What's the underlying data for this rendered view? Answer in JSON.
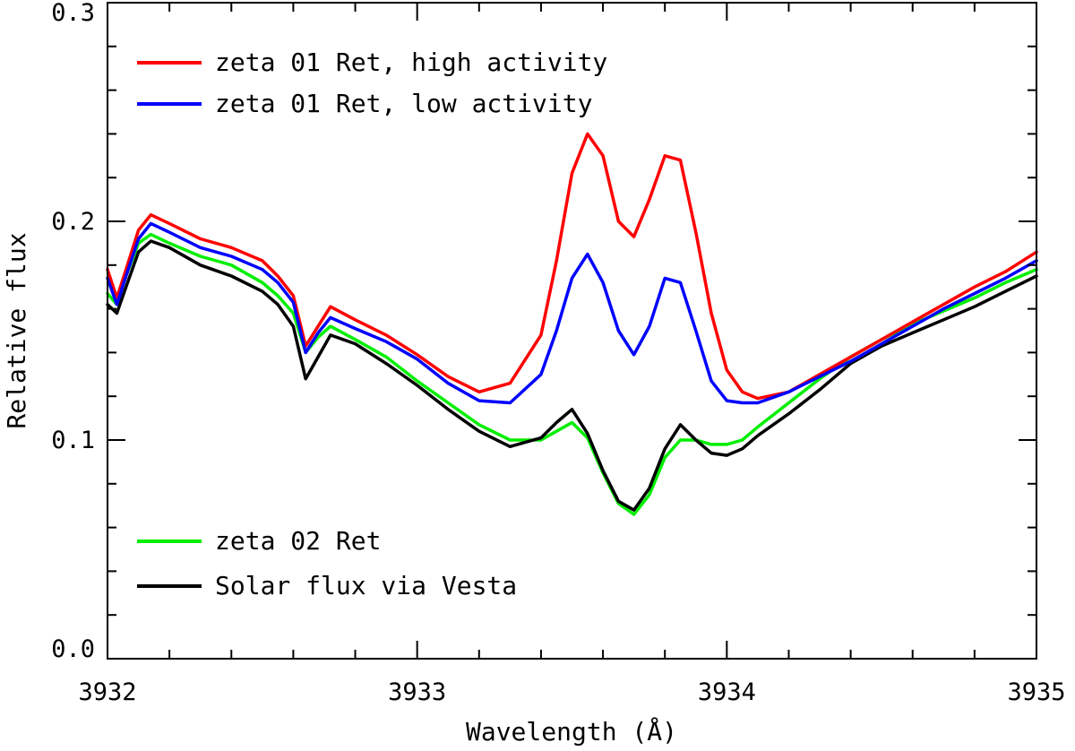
{
  "chart_data": {
    "type": "line",
    "title": "",
    "xlabel": "Wavelength (Å)",
    "ylabel": "Relative flux",
    "xlim": [
      3932,
      3935
    ],
    "ylim": [
      0.0,
      0.3
    ],
    "xticks": [
      3932,
      3933,
      3934,
      3935
    ],
    "xtick_labels": [
      "3932",
      "3933",
      "3934",
      "3935"
    ],
    "yticks": [
      0.0,
      0.1,
      0.2,
      0.3
    ],
    "ytick_labels": [
      "0.0",
      "0.1",
      "0.2",
      "0.3"
    ],
    "grid": false,
    "series": [
      {
        "name": "zeta 01 Ret, high activity",
        "color": "#ff0000",
        "points": [
          [
            3932.0,
            0.178
          ],
          [
            3932.03,
            0.165
          ],
          [
            3932.06,
            0.178
          ],
          [
            3932.1,
            0.196
          ],
          [
            3932.14,
            0.203
          ],
          [
            3932.2,
            0.199
          ],
          [
            3932.3,
            0.192
          ],
          [
            3932.4,
            0.188
          ],
          [
            3932.5,
            0.182
          ],
          [
            3932.55,
            0.175
          ],
          [
            3932.6,
            0.166
          ],
          [
            3932.64,
            0.143
          ],
          [
            3932.68,
            0.152
          ],
          [
            3932.72,
            0.161
          ],
          [
            3932.8,
            0.155
          ],
          [
            3932.9,
            0.148
          ],
          [
            3933.0,
            0.139
          ],
          [
            3933.1,
            0.129
          ],
          [
            3933.2,
            0.122
          ],
          [
            3933.3,
            0.126
          ],
          [
            3933.4,
            0.148
          ],
          [
            3933.45,
            0.182
          ],
          [
            3933.5,
            0.222
          ],
          [
            3933.55,
            0.24
          ],
          [
            3933.6,
            0.23
          ],
          [
            3933.65,
            0.2
          ],
          [
            3933.7,
            0.193
          ],
          [
            3933.75,
            0.21
          ],
          [
            3933.8,
            0.23
          ],
          [
            3933.85,
            0.228
          ],
          [
            3933.9,
            0.195
          ],
          [
            3933.95,
            0.158
          ],
          [
            3934.0,
            0.132
          ],
          [
            3934.05,
            0.122
          ],
          [
            3934.1,
            0.119
          ],
          [
            3934.2,
            0.122
          ],
          [
            3934.3,
            0.13
          ],
          [
            3934.4,
            0.138
          ],
          [
            3934.5,
            0.146
          ],
          [
            3934.6,
            0.154
          ],
          [
            3934.7,
            0.162
          ],
          [
            3934.8,
            0.17
          ],
          [
            3934.9,
            0.177
          ],
          [
            3935.0,
            0.186
          ]
        ]
      },
      {
        "name": "zeta 01 Ret, low activity",
        "color": "#0000ff",
        "points": [
          [
            3932.0,
            0.174
          ],
          [
            3932.03,
            0.162
          ],
          [
            3932.06,
            0.175
          ],
          [
            3932.1,
            0.192
          ],
          [
            3932.14,
            0.199
          ],
          [
            3932.2,
            0.195
          ],
          [
            3932.3,
            0.188
          ],
          [
            3932.4,
            0.184
          ],
          [
            3932.5,
            0.178
          ],
          [
            3932.55,
            0.172
          ],
          [
            3932.6,
            0.163
          ],
          [
            3932.64,
            0.14
          ],
          [
            3932.68,
            0.149
          ],
          [
            3932.72,
            0.156
          ],
          [
            3932.8,
            0.151
          ],
          [
            3932.9,
            0.145
          ],
          [
            3933.0,
            0.137
          ],
          [
            3933.1,
            0.126
          ],
          [
            3933.2,
            0.118
          ],
          [
            3933.3,
            0.117
          ],
          [
            3933.4,
            0.13
          ],
          [
            3933.45,
            0.15
          ],
          [
            3933.5,
            0.174
          ],
          [
            3933.55,
            0.185
          ],
          [
            3933.6,
            0.172
          ],
          [
            3933.65,
            0.15
          ],
          [
            3933.7,
            0.139
          ],
          [
            3933.75,
            0.152
          ],
          [
            3933.8,
            0.174
          ],
          [
            3933.85,
            0.172
          ],
          [
            3933.9,
            0.15
          ],
          [
            3933.95,
            0.127
          ],
          [
            3934.0,
            0.118
          ],
          [
            3934.05,
            0.117
          ],
          [
            3934.1,
            0.117
          ],
          [
            3934.2,
            0.122
          ],
          [
            3934.3,
            0.129
          ],
          [
            3934.4,
            0.136
          ],
          [
            3934.5,
            0.144
          ],
          [
            3934.6,
            0.152
          ],
          [
            3934.7,
            0.16
          ],
          [
            3934.8,
            0.167
          ],
          [
            3934.9,
            0.174
          ],
          [
            3935.0,
            0.182
          ]
        ]
      },
      {
        "name": "zeta 02 Ret",
        "color": "#00ee00",
        "points": [
          [
            3932.0,
            0.167
          ],
          [
            3932.03,
            0.162
          ],
          [
            3932.06,
            0.175
          ],
          [
            3932.1,
            0.19
          ],
          [
            3932.14,
            0.194
          ],
          [
            3932.2,
            0.19
          ],
          [
            3932.3,
            0.184
          ],
          [
            3932.4,
            0.18
          ],
          [
            3932.5,
            0.172
          ],
          [
            3932.55,
            0.166
          ],
          [
            3932.6,
            0.158
          ],
          [
            3932.64,
            0.14
          ],
          [
            3932.68,
            0.147
          ],
          [
            3932.72,
            0.152
          ],
          [
            3932.8,
            0.146
          ],
          [
            3932.9,
            0.138
          ],
          [
            3933.0,
            0.127
          ],
          [
            3933.1,
            0.117
          ],
          [
            3933.2,
            0.107
          ],
          [
            3933.3,
            0.1
          ],
          [
            3933.4,
            0.1
          ],
          [
            3933.45,
            0.104
          ],
          [
            3933.5,
            0.108
          ],
          [
            3933.55,
            0.101
          ],
          [
            3933.6,
            0.085
          ],
          [
            3933.65,
            0.071
          ],
          [
            3933.7,
            0.066
          ],
          [
            3933.75,
            0.075
          ],
          [
            3933.8,
            0.092
          ],
          [
            3933.85,
            0.1
          ],
          [
            3933.9,
            0.1
          ],
          [
            3933.95,
            0.098
          ],
          [
            3934.0,
            0.098
          ],
          [
            3934.05,
            0.1
          ],
          [
            3934.1,
            0.106
          ],
          [
            3934.2,
            0.117
          ],
          [
            3934.3,
            0.128
          ],
          [
            3934.4,
            0.138
          ],
          [
            3934.5,
            0.146
          ],
          [
            3934.6,
            0.153
          ],
          [
            3934.7,
            0.159
          ],
          [
            3934.8,
            0.165
          ],
          [
            3934.9,
            0.172
          ],
          [
            3935.0,
            0.178
          ]
        ]
      },
      {
        "name": "Solar flux via Vesta",
        "color": "#000000",
        "points": [
          [
            3932.0,
            0.162
          ],
          [
            3932.03,
            0.158
          ],
          [
            3932.06,
            0.17
          ],
          [
            3932.1,
            0.186
          ],
          [
            3932.14,
            0.191
          ],
          [
            3932.2,
            0.188
          ],
          [
            3932.3,
            0.18
          ],
          [
            3932.4,
            0.175
          ],
          [
            3932.5,
            0.168
          ],
          [
            3932.55,
            0.162
          ],
          [
            3932.6,
            0.152
          ],
          [
            3932.64,
            0.128
          ],
          [
            3932.68,
            0.138
          ],
          [
            3932.72,
            0.148
          ],
          [
            3932.8,
            0.144
          ],
          [
            3932.9,
            0.135
          ],
          [
            3933.0,
            0.125
          ],
          [
            3933.1,
            0.114
          ],
          [
            3933.2,
            0.104
          ],
          [
            3933.3,
            0.097
          ],
          [
            3933.4,
            0.101
          ],
          [
            3933.45,
            0.108
          ],
          [
            3933.5,
            0.114
          ],
          [
            3933.55,
            0.103
          ],
          [
            3933.6,
            0.086
          ],
          [
            3933.65,
            0.072
          ],
          [
            3933.7,
            0.068
          ],
          [
            3933.75,
            0.078
          ],
          [
            3933.8,
            0.096
          ],
          [
            3933.85,
            0.107
          ],
          [
            3933.9,
            0.1
          ],
          [
            3933.95,
            0.094
          ],
          [
            3934.0,
            0.093
          ],
          [
            3934.05,
            0.096
          ],
          [
            3934.1,
            0.102
          ],
          [
            3934.2,
            0.112
          ],
          [
            3934.3,
            0.123
          ],
          [
            3934.4,
            0.135
          ],
          [
            3934.5,
            0.143
          ],
          [
            3934.6,
            0.149
          ],
          [
            3934.7,
            0.155
          ],
          [
            3934.8,
            0.161
          ],
          [
            3934.9,
            0.168
          ],
          [
            3935.0,
            0.175
          ]
        ]
      }
    ],
    "legend": [
      {
        "label": "zeta 01 Ret, high activity",
        "color": "#ff0000"
      },
      {
        "label": "zeta 01 Ret, low activity",
        "color": "#0000ff"
      },
      {
        "label": "zeta 02 Ret",
        "color": "#00ee00"
      },
      {
        "label": "Solar flux via Vesta",
        "color": "#000000"
      }
    ]
  }
}
